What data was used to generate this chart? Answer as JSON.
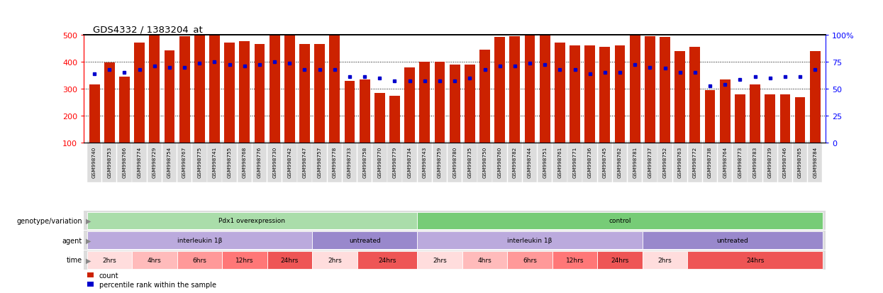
{
  "title": "GDS4332 / 1383204_at",
  "bar_color": "#cc2200",
  "dot_color": "#0000cc",
  "samples": [
    "GSM998740",
    "GSM998753",
    "GSM998766",
    "GSM998774",
    "GSM998729",
    "GSM998754",
    "GSM998767",
    "GSM998775",
    "GSM998741",
    "GSM998755",
    "GSM998768",
    "GSM998776",
    "GSM998730",
    "GSM998742",
    "GSM998747",
    "GSM998757",
    "GSM998778",
    "GSM998733",
    "GSM998758",
    "GSM998770",
    "GSM998779",
    "GSM998734",
    "GSM998743",
    "GSM998759",
    "GSM998780",
    "GSM998735",
    "GSM998750",
    "GSM998760",
    "GSM998782",
    "GSM998744",
    "GSM998751",
    "GSM998761",
    "GSM998771",
    "GSM998736",
    "GSM998745",
    "GSM998762",
    "GSM998781",
    "GSM998737",
    "GSM998752",
    "GSM998763",
    "GSM998772",
    "GSM998738",
    "GSM998764",
    "GSM998773",
    "GSM998783",
    "GSM998739",
    "GSM998746",
    "GSM998765",
    "GSM998784"
  ],
  "bar_heights": [
    215,
    296,
    245,
    370,
    406,
    342,
    395,
    425,
    405,
    370,
    375,
    365,
    450,
    420,
    365,
    365,
    420,
    230,
    235,
    185,
    175,
    280,
    300,
    300,
    290,
    290,
    345,
    390,
    395,
    445,
    455,
    370,
    360,
    360,
    355,
    360,
    425,
    395,
    390,
    340,
    355,
    195,
    235,
    180,
    215,
    180,
    180,
    170,
    340
  ],
  "dot_values": [
    355,
    370,
    360,
    370,
    385,
    380,
    380,
    395,
    400,
    390,
    385,
    390,
    400,
    395,
    370,
    370,
    370,
    345,
    345,
    340,
    330,
    330,
    330,
    330,
    330,
    340,
    370,
    385,
    385,
    395,
    390,
    370,
    370,
    355,
    360,
    360,
    390,
    380,
    375,
    360,
    360,
    310,
    315,
    335,
    345,
    340,
    345,
    345,
    370
  ],
  "ylim_left": [
    100,
    500
  ],
  "ylim_right": [
    0,
    100
  ],
  "yticks_left": [
    100,
    200,
    300,
    400,
    500
  ],
  "yticks_right": [
    0,
    25,
    50,
    75,
    100
  ],
  "hlines": [
    200,
    300,
    400
  ],
  "genotype_sections": [
    {
      "label": "Pdx1 overexpression",
      "start": 0,
      "end": 21,
      "color": "#aaddaa"
    },
    {
      "label": "control",
      "start": 22,
      "end": 48,
      "color": "#77cc77"
    }
  ],
  "agent_sections": [
    {
      "label": "interleukin 1β",
      "start": 0,
      "end": 14,
      "color": "#bbaadd"
    },
    {
      "label": "untreated",
      "start": 15,
      "end": 21,
      "color": "#9988cc"
    },
    {
      "label": "interleukin 1β",
      "start": 22,
      "end": 36,
      "color": "#bbaadd"
    },
    {
      "label": "untreated",
      "start": 37,
      "end": 48,
      "color": "#9988cc"
    }
  ],
  "time_sections": [
    {
      "label": "2hrs",
      "start": 0,
      "end": 2,
      "color": "#ffdddd"
    },
    {
      "label": "4hrs",
      "start": 3,
      "end": 5,
      "color": "#ffbbbb"
    },
    {
      "label": "6hrs",
      "start": 6,
      "end": 8,
      "color": "#ff9999"
    },
    {
      "label": "12hrs",
      "start": 9,
      "end": 11,
      "color": "#ff7777"
    },
    {
      "label": "24hrs",
      "start": 12,
      "end": 14,
      "color": "#ee5555"
    },
    {
      "label": "2hrs",
      "start": 15,
      "end": 17,
      "color": "#ffdddd"
    },
    {
      "label": "24hrs",
      "start": 18,
      "end": 21,
      "color": "#ee5555"
    },
    {
      "label": "2hrs",
      "start": 22,
      "end": 24,
      "color": "#ffdddd"
    },
    {
      "label": "4hrs",
      "start": 25,
      "end": 27,
      "color": "#ffbbbb"
    },
    {
      "label": "6hrs",
      "start": 28,
      "end": 30,
      "color": "#ff9999"
    },
    {
      "label": "12hrs",
      "start": 31,
      "end": 33,
      "color": "#ff7777"
    },
    {
      "label": "24hrs",
      "start": 34,
      "end": 36,
      "color": "#ee5555"
    },
    {
      "label": "2hrs",
      "start": 37,
      "end": 39,
      "color": "#ffdddd"
    },
    {
      "label": "24hrs",
      "start": 40,
      "end": 48,
      "color": "#ee5555"
    }
  ],
  "row_labels": [
    "genotype/variation",
    "agent",
    "time"
  ],
  "tick_bg_color": "#dddddd",
  "row_bg_color": "#dddddd",
  "legend_count_color": "#cc2200",
  "legend_pct_color": "#0000cc"
}
